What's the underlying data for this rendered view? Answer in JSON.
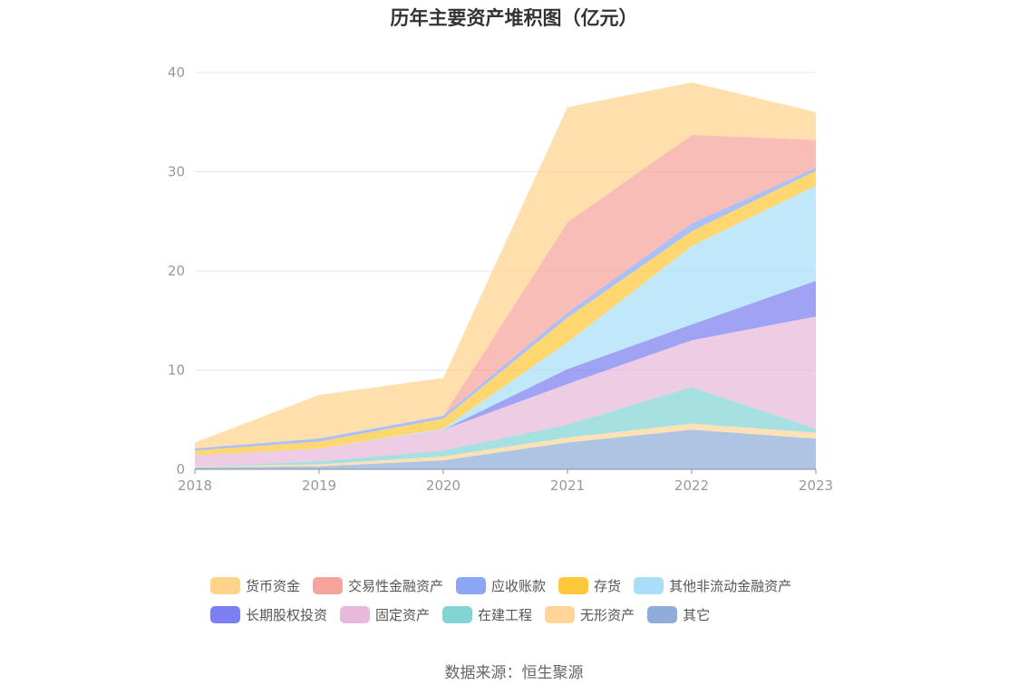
{
  "chart_data": {
    "type": "area",
    "stacked": true,
    "title": "历年主要资产堆积图（亿元）",
    "x": [
      "2018",
      "2019",
      "2020",
      "2021",
      "2022",
      "2023"
    ],
    "ylim": [
      0,
      40
    ],
    "yticks": [
      0,
      10,
      20,
      30,
      40
    ],
    "grid": true,
    "legend_position": "bottom",
    "series": [
      {
        "name": "其它",
        "color": "#8fadd8",
        "values": [
          0.2,
          0.3,
          0.9,
          2.7,
          4.0,
          3.1
        ]
      },
      {
        "name": "无形资产",
        "color": "#ffd59a",
        "values": [
          0.1,
          0.2,
          0.4,
          0.5,
          0.6,
          0.6
        ]
      },
      {
        "name": "在建工程",
        "color": "#85d4d4",
        "values": [
          0.0,
          0.3,
          0.6,
          1.3,
          3.7,
          0.4
        ]
      },
      {
        "name": "固定资产",
        "color": "#e8b9da",
        "values": [
          1.1,
          1.3,
          2.1,
          4.1,
          4.7,
          11.3
        ]
      },
      {
        "name": "长期股权投资",
        "color": "#7b7ff0",
        "values": [
          0.0,
          0.0,
          0.0,
          1.5,
          1.6,
          3.6
        ]
      },
      {
        "name": "其他非流动金融资产",
        "color": "#a9def8",
        "values": [
          0.0,
          0.0,
          0.1,
          2.7,
          7.9,
          9.6
        ]
      },
      {
        "name": "存货",
        "color": "#ffc83a",
        "values": [
          0.5,
          0.7,
          1.0,
          2.5,
          1.5,
          1.5
        ]
      },
      {
        "name": "应收账款",
        "color": "#8aa6f5",
        "values": [
          0.2,
          0.3,
          0.3,
          0.5,
          0.8,
          0.3
        ]
      },
      {
        "name": "交易性金融资产",
        "color": "#f7a39b",
        "values": [
          0.0,
          0.0,
          0.0,
          9.1,
          8.9,
          2.8
        ]
      },
      {
        "name": "货币资金",
        "color": "#ffd38a",
        "values": [
          0.6,
          4.4,
          3.8,
          11.6,
          5.3,
          2.8
        ]
      }
    ]
  },
  "legend": {
    "row1": [
      {
        "label": "货币资金",
        "color": "#ffd38a"
      },
      {
        "label": "交易性金融资产",
        "color": "#f7a39b"
      },
      {
        "label": "应收账款",
        "color": "#8aa6f5"
      },
      {
        "label": "存货",
        "color": "#ffc83a"
      },
      {
        "label": "其他非流动金融资产",
        "color": "#a9def8"
      }
    ],
    "row2": [
      {
        "label": "长期股权投资",
        "color": "#7b7ff0"
      },
      {
        "label": "固定资产",
        "color": "#e8b9da"
      },
      {
        "label": "在建工程",
        "color": "#85d4d4"
      },
      {
        "label": "无形资产",
        "color": "#ffd59a"
      },
      {
        "label": "其它",
        "color": "#8fadd8"
      }
    ]
  },
  "source_text": "数据来源：恒生聚源"
}
